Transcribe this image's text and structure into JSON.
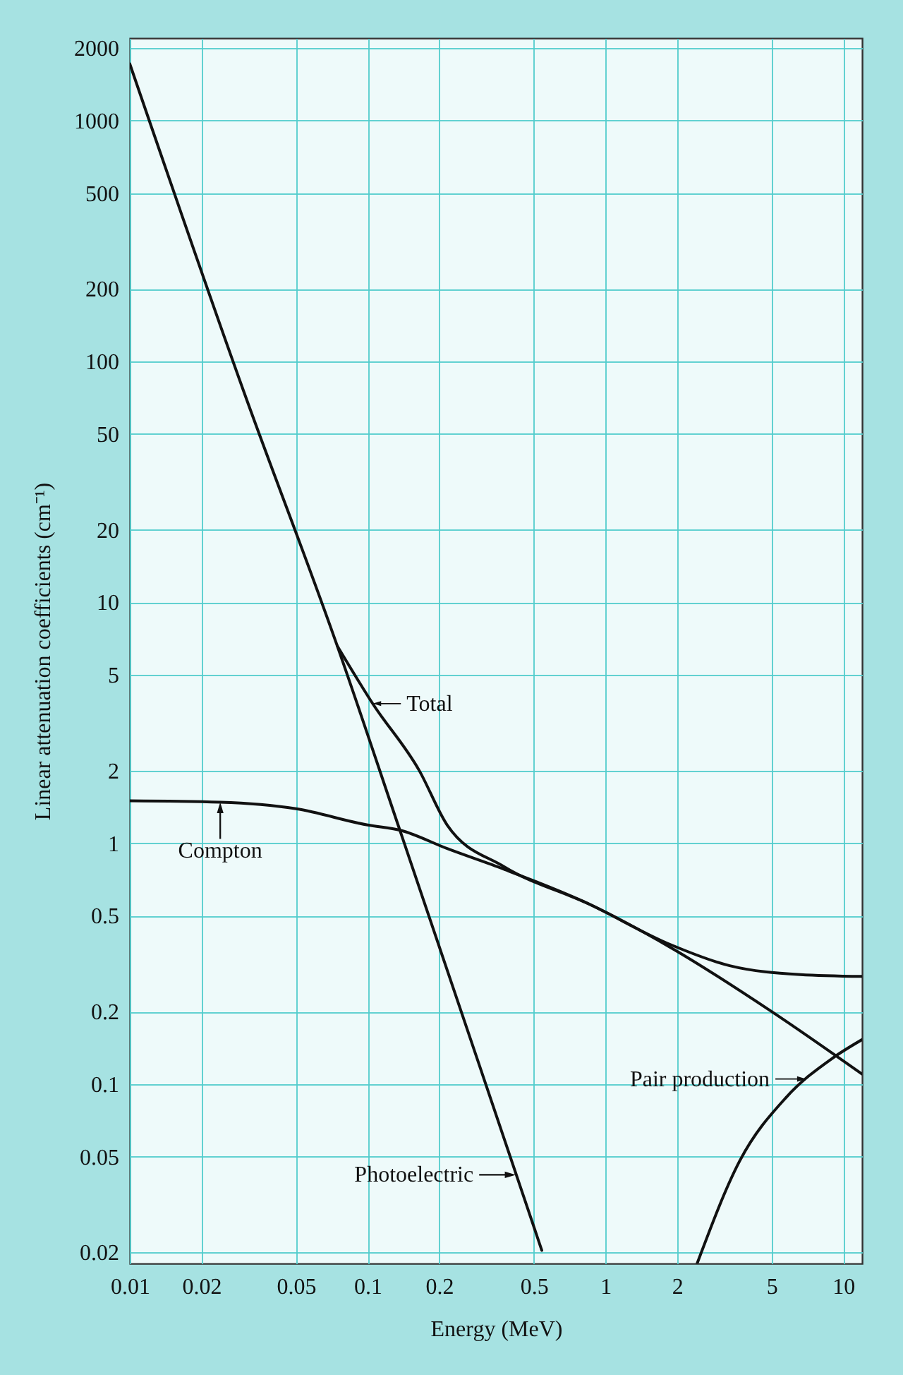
{
  "chart_data": {
    "type": "line",
    "xlabel": "Energy (MeV)",
    "ylabel": "Linear attenuation coefficients (cm⁻¹)",
    "log": "xy",
    "grid": true,
    "xlim": [
      0.01,
      12
    ],
    "xticks": [
      0.01,
      0.02,
      0.05,
      0.1,
      0.2,
      0.5,
      1,
      2,
      5,
      10
    ],
    "ylim": [
      0.018,
      2200
    ],
    "yticks": [
      0.02,
      0.05,
      0.1,
      0.2,
      0.5,
      1,
      2,
      5,
      10,
      20,
      50,
      100,
      200,
      500,
      1000,
      2000
    ],
    "series": [
      {
        "color": "#111111",
        "x": [
          0.01,
          0.03,
          0.0745,
          0.138,
          0.3,
          0.54
        ],
        "values": [
          1720,
          76,
          6.6,
          1.1,
          0.114,
          0.0204
        ]
      },
      {
        "color": "#111111",
        "x": [
          0.0745,
          0.105,
          0.165,
          0.216,
          0.374,
          0.85,
          1.87,
          3.33,
          6.6,
          12
        ],
        "values": [
          6.6,
          3.8,
          2.0,
          1.19,
          0.8,
          0.56,
          0.38,
          0.31,
          0.285,
          0.28
        ]
      },
      {
        "color": "#111111",
        "x": [
          0.01,
          0.024,
          0.05,
          0.1,
          0.138,
          0.216,
          0.374,
          0.85,
          1.87,
          5,
          12
        ],
        "values": [
          1.5,
          1.48,
          1.39,
          1.19,
          1.13,
          0.95,
          0.78,
          0.56,
          0.37,
          0.2,
          0.11
        ]
      },
      {
        "color": "#111111",
        "x": [
          2.43,
          3.67,
          5.75,
          9.0,
          12
        ],
        "values": [
          0.018,
          0.048,
          0.088,
          0.128,
          0.153
        ]
      }
    ],
    "annotations": [
      {
        "text": "Total",
        "x": 0.105,
        "y": 3.8
      },
      {
        "text": "Compton",
        "x": 0.024,
        "y": 1.48
      },
      {
        "text": "Photoelectric",
        "x": 0.42,
        "y": 0.042
      },
      {
        "text": "Pair production",
        "x": 7,
        "y": 0.105
      }
    ]
  }
}
